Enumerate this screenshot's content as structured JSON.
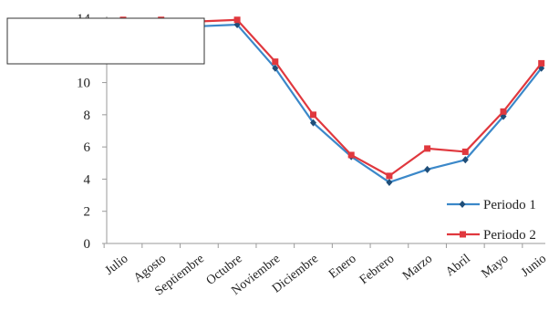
{
  "chart_data": {
    "type": "line",
    "categories": [
      "Julio",
      "Agosto",
      "Septiembre",
      "Octubre",
      "Noviembre",
      "Diciembre",
      "Enero",
      "Febrero",
      "Marzo",
      "Abril",
      "Mayo",
      "Junio"
    ],
    "series": [
      {
        "name": "Periodo 1",
        "color": "#3b88c9",
        "marker": "diamond",
        "values": [
          13.8,
          13.8,
          13.5,
          13.6,
          10.9,
          7.5,
          5.4,
          3.8,
          4.6,
          5.2,
          7.9,
          10.9
        ]
      },
      {
        "name": "Periodo 2",
        "color": "#e0383e",
        "marker": "square",
        "values": [
          13.9,
          13.9,
          13.8,
          13.9,
          11.3,
          8.0,
          5.5,
          4.2,
          5.9,
          5.7,
          8.2,
          11.2
        ]
      }
    ],
    "yticks": [
      "0",
      "2",
      "4",
      "6",
      "8",
      "10",
      "14"
    ],
    "ytick_values": [
      0,
      2,
      4,
      6,
      8,
      10,
      14
    ],
    "ylim": [
      0,
      14
    ],
    "grid": false,
    "legend_position": "right"
  }
}
